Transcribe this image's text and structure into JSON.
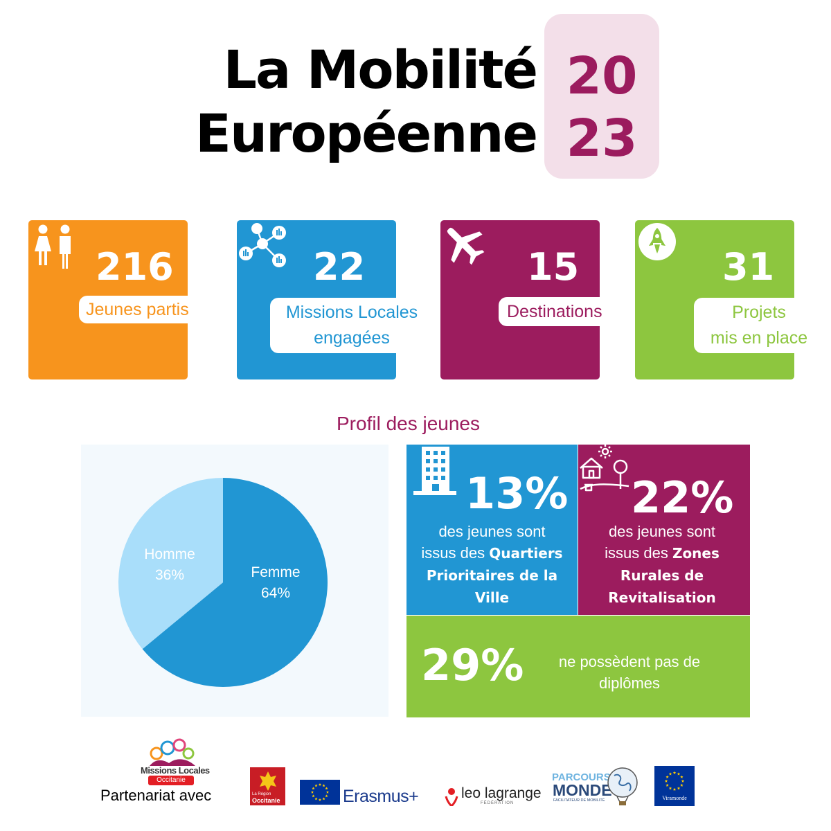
{
  "title": {
    "line1": "La Mobilité",
    "line2": "Européenne",
    "year_line1": "20",
    "year_line2": "23"
  },
  "stats": [
    {
      "value": "216",
      "label": "Jeunes partis",
      "icon": "people-icon",
      "color": "#f7941d"
    },
    {
      "value": "22",
      "label_line1": "Missions Locales",
      "label_line2": "engagées",
      "icon": "network-icon",
      "color": "#2196d3"
    },
    {
      "value": "15",
      "label": "Destinations",
      "icon": "airplane-icon",
      "color": "#9c1c5e"
    },
    {
      "value": "31",
      "label_line1": "Projets",
      "label_line2": "mis en place",
      "icon": "rocket-icon",
      "color": "#8dc63f"
    }
  ],
  "profil": {
    "title": "Profil des jeunes",
    "qpv": {
      "pct": "13%",
      "text1": "des jeunes sont",
      "text2": "issus des ",
      "bold1": "Quartiers",
      "bold2": "Prioritaires de la",
      "bold3": "Ville"
    },
    "zrr": {
      "pct": "22%",
      "text1": "des jeunes sont",
      "text2": "issus des ",
      "bold1": "Zones",
      "bold2": "Rurales de",
      "bold3": "Revitalisation"
    },
    "diplome": {
      "pct": "29%",
      "text1": "ne possèdent pas de",
      "text2": "diplômes"
    }
  },
  "chart_data": {
    "type": "pie",
    "slices": [
      {
        "label": "Femme",
        "value": 64,
        "display": "64%",
        "color": "#2196d3"
      },
      {
        "label": "Homme",
        "value": 36,
        "display": "36%",
        "color": "#a9defa"
      }
    ]
  },
  "footer": {
    "partner_label": "Partenariat avec",
    "logos": {
      "missions_locales_1": "Missions Locales",
      "missions_locales_2": "Occitanie",
      "occitanie_1": "La Région",
      "occitanie_2": "Occitanie",
      "erasmus": "Erasmus+",
      "leo": "leo lagrange",
      "leo_sub": "FÉDÉRATION",
      "parcours_1": "PARCOURS",
      "parcours_2": "MONDE",
      "parcours_sub": "FACILITATEUR DE MOBILITÉ",
      "viramonde": "Viramonde"
    }
  }
}
